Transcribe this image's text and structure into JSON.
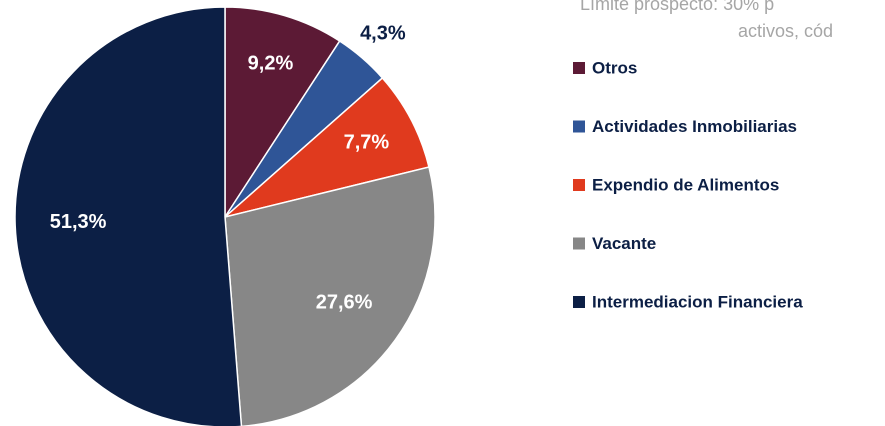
{
  "chart_data": {
    "type": "pie",
    "annotation": [
      "Límite prospecto: 30% p",
      "activos, cód"
    ],
    "categories": [
      "Otros",
      "Actividades Inmobiliarias",
      "Expendio de Alimentos",
      "Vacante",
      "Intermediacion Financiera"
    ],
    "values": [
      9.2,
      4.3,
      7.7,
      27.6,
      51.3
    ],
    "value_labels": [
      "9,2%",
      "4,3%",
      "7,7%",
      "27,6%",
      "51,3%"
    ],
    "colors": [
      "#5c1a35",
      "#2f5597",
      "#e03a1e",
      "#878787",
      "#0c1f45"
    ],
    "legend": "right"
  }
}
